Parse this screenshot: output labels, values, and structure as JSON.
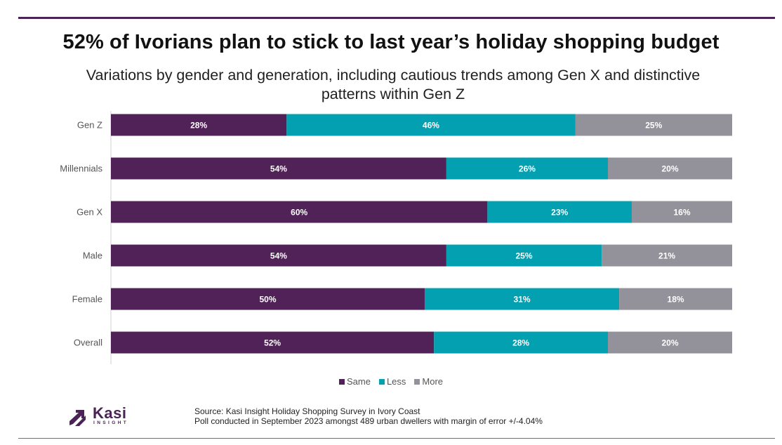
{
  "chart_data": {
    "type": "bar",
    "orientation": "horizontal",
    "stacked": true,
    "title": "52% of Ivorians plan to stick to last year’s holiday shopping budget",
    "subtitle": "Variations by gender and generation, including cautious trends among Gen X and distinctive patterns within Gen Z",
    "categories": [
      "Gen Z",
      "Millennials",
      "Gen X",
      "Male",
      "Female",
      "Overall"
    ],
    "series": [
      {
        "name": "Same",
        "color": "#512257",
        "values": [
          28,
          54,
          60,
          54,
          50,
          52
        ],
        "labels": [
          "28%",
          "54%",
          "60%",
          "54%",
          "50%",
          "52%"
        ]
      },
      {
        "name": "Less",
        "color": "#02A0B0",
        "values": [
          46,
          26,
          23,
          25,
          31,
          28
        ],
        "labels": [
          "46%",
          "26%",
          "23%",
          "25%",
          "31%",
          "28%"
        ]
      },
      {
        "name": "More",
        "color": "#939199",
        "values": [
          25,
          20,
          16,
          21,
          18,
          20
        ],
        "labels": [
          "25%",
          "20%",
          "16%",
          "21%",
          "18%",
          "20%"
        ]
      }
    ],
    "legend": "bottom-center",
    "grid": false
  },
  "logo": {
    "word": "Kasi",
    "sub": "INSIGHT"
  },
  "source": {
    "line1": "Source: Kasi Insight Holiday Shopping Survey in Ivory Coast",
    "line2": "Poll conducted  in September 2023 amongst 489 urban dwellers with margin of error +/-4.04%"
  },
  "colors": {
    "accent": "#4a2456",
    "label_text": "#555555"
  }
}
